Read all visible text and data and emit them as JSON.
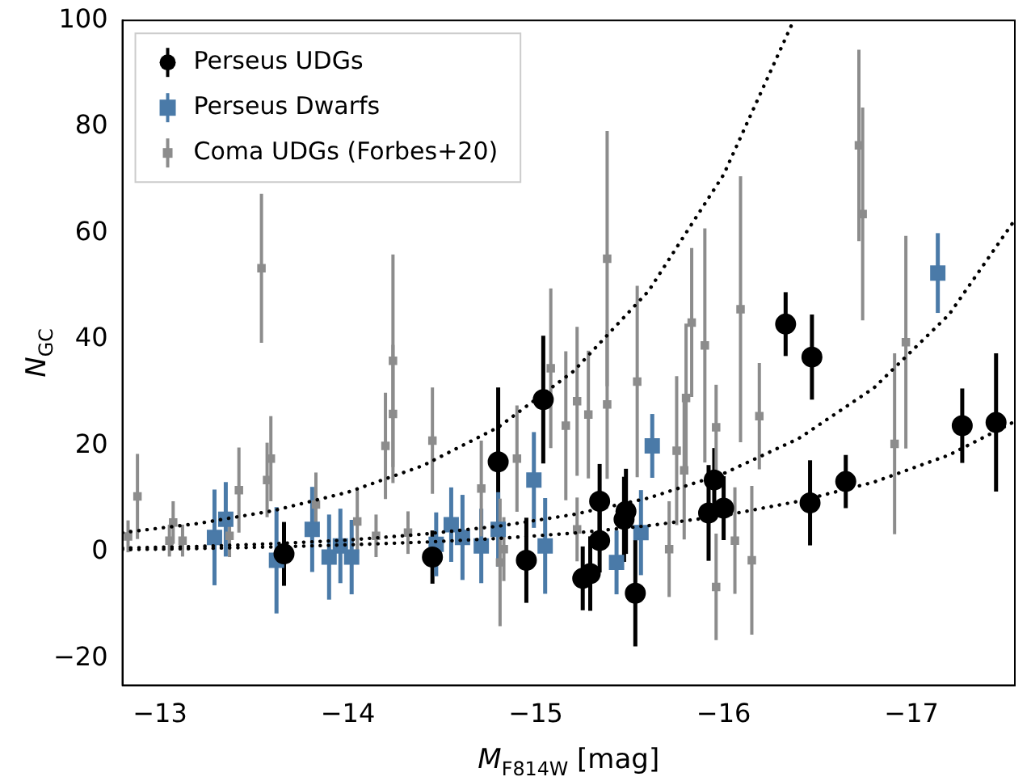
{
  "chart_data": {
    "type": "scatter",
    "xlabel": "M$_{F814W}$ [mag]",
    "ylabel": "N$_{GC}$",
    "xlim": [
      -12.8,
      -17.55
    ],
    "ylim": [
      -25,
      100
    ],
    "xticks": [
      -13,
      -14,
      -15,
      -16,
      -17
    ],
    "yticks": [
      -20,
      0,
      20,
      40,
      60,
      80,
      100
    ],
    "grid": false,
    "legend": "top left",
    "series": [
      {
        "name": "Perseus UDGs",
        "marker": "circle",
        "color": "#000000",
        "x": [
          -13.66,
          -14.45,
          -14.8,
          -14.95,
          -15.04,
          -15.25,
          -15.29,
          -15.34,
          -15.34,
          -15.47,
          -15.48,
          -15.53,
          -15.92,
          -15.95,
          -16,
          -16.33,
          -16.46,
          -16.47,
          -16.65,
          -17.27,
          -17.45
        ],
        "values": [
          -0.3,
          -0.9,
          17,
          -1.5,
          28.7,
          -4.9,
          -4,
          9.6,
          2.2,
          6.2,
          7.7,
          -7.7,
          7.4,
          13.6,
          8.3,
          42.9,
          9.3,
          36.7,
          13.3,
          23.8,
          24.4
        ],
        "errors": [
          6,
          5,
          14,
          8,
          12,
          6,
          7,
          7,
          6,
          8,
          8,
          10,
          9,
          6,
          6,
          6,
          8,
          8,
          5,
          7,
          13
        ]
      },
      {
        "name": "Perseus Dwarfs",
        "marker": "square",
        "color": "#4a7aa8",
        "x": [
          -13.29,
          -13.35,
          -13.62,
          -13.81,
          -13.9,
          -13.96,
          -14.02,
          -14.47,
          -14.55,
          -14.61,
          -14.71,
          -14.8,
          -14.99,
          -15.05,
          -15.43,
          -15.56,
          -15.62,
          -17.14
        ],
        "values": [
          2.8,
          6.2,
          -1.5,
          4.3,
          -0.9,
          1.2,
          -0.9,
          1.5,
          5.2,
          2.8,
          1.2,
          4.3,
          13.6,
          1.2,
          -1.9,
          3.7,
          20,
          52.5
        ],
        "errors": [
          9,
          7,
          10,
          8,
          8,
          7,
          7,
          6,
          7,
          8,
          7,
          7,
          9,
          9,
          6,
          8,
          6,
          7.5
        ]
      },
      {
        "name": "Coma UDGs (Forbes+20)",
        "marker": "square",
        "color": "#8c8c8c",
        "x": [
          -12.83,
          -12.88,
          -13.05,
          -13.07,
          -13.12,
          -13.37,
          -13.42,
          -13.54,
          -13.57,
          -13.59,
          -13.83,
          -14.05,
          -14.15,
          -14.2,
          -14.24,
          -14.24,
          -14.32,
          -14.45,
          -14.71,
          -14.81,
          -14.83,
          -14.9,
          -15.08,
          -15.16,
          -15.22,
          -15.22,
          -15.28,
          -15.38,
          -15.38,
          -15.54,
          -15.71,
          -15.75,
          -15.79,
          -15.8,
          -15.83,
          -15.9,
          -15.96,
          -15.96,
          -16.06,
          -16.09,
          -16.15,
          -16.19,
          -16.72,
          -16.74,
          -16.91,
          -16.97
        ],
        "values": [
          3,
          10.5,
          2.2,
          5.6,
          2.2,
          3.1,
          11.7,
          53.4,
          13.6,
          17.6,
          9,
          5.8,
          3.1,
          20,
          26,
          36,
          3.7,
          21,
          12,
          -1.9,
          0.6,
          17.6,
          34.6,
          23.8,
          28.4,
          4.3,
          25.9,
          55.2,
          27.8,
          32.1,
          0.6,
          19.1,
          15.4,
          29,
          43.2,
          38.9,
          23.5,
          -6.5,
          2.2,
          45.7,
          -1.5,
          25.6,
          76.5,
          63.6,
          20.4,
          39.5
        ],
        "errors": [
          3,
          8,
          3,
          4,
          3,
          4,
          8,
          14,
          7,
          8,
          6,
          6,
          4,
          10,
          13,
          20,
          4,
          10,
          9,
          12,
          6,
          10,
          15,
          14,
          14,
          6,
          12,
          24,
          14,
          18,
          9,
          14,
          13,
          14,
          14,
          22,
          8,
          10,
          10,
          25,
          14,
          10,
          18,
          20,
          17,
          20
        ]
      },
      {
        "type": "line",
        "marker": "none",
        "line_style": "dotted",
        "color": "#000000",
        "x": [
          -12.8,
          -13.2,
          -13.6,
          -14,
          -14.4,
          -14.8,
          -15.2,
          -15.6,
          -16,
          -16.36
        ],
        "values": [
          3.7,
          5.4,
          7.8,
          11.3,
          16.3,
          23.5,
          34,
          49.1,
          71,
          99
        ]
      },
      {
        "type": "line",
        "marker": "none",
        "line_style": "dotted",
        "color": "#000000",
        "x": [
          -12.8,
          -13.2,
          -13.6,
          -14,
          -14.4,
          -14.8,
          -15.2,
          -15.6,
          -16,
          -16.4,
          -16.8,
          -17.2,
          -17.55
        ],
        "values": [
          0.8,
          1.1,
          1.6,
          2.3,
          3.4,
          4.9,
          7.1,
          10.2,
          14.8,
          21.4,
          30.9,
          44.7,
          62.5
        ]
      },
      {
        "type": "line",
        "marker": "none",
        "line_style": "dotted",
        "color": "#000000",
        "x": [
          -12.8,
          -13.2,
          -13.6,
          -14,
          -14.4,
          -14.8,
          -15.2,
          -15.6,
          -16,
          -16.4,
          -16.8,
          -17.2,
          -17.55
        ],
        "values": [
          0.5,
          0.7,
          1,
          1.4,
          1.9,
          2.6,
          3.6,
          5,
          6.9,
          9.6,
          13.2,
          18.3,
          24.6
        ]
      }
    ]
  }
}
